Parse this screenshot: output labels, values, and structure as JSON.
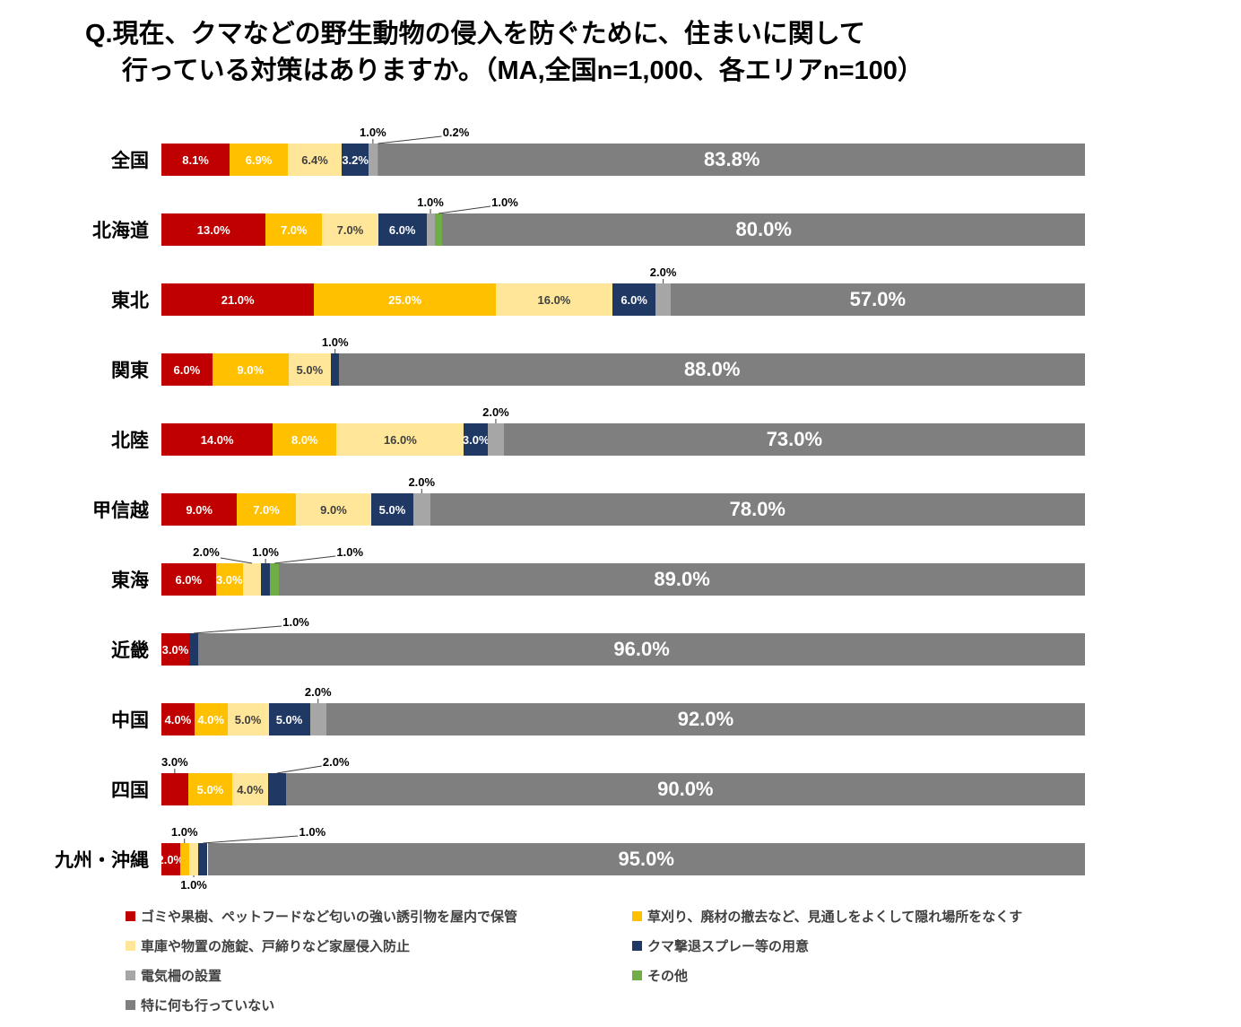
{
  "title": {
    "line1": "Q.現在、クマなどの野生動物の侵入を防ぐために、住まいに関して",
    "line2": "行っている対策はありますか。（MA,全国n=1,000、各エリアn=100）"
  },
  "chart_data": {
    "type": "bar",
    "subtype": "horizontal-stacked-percent",
    "note": "MA, 全国n=1,000、各エリアn=100",
    "categories": [
      "全国",
      "北海道",
      "東北",
      "関東",
      "北陸",
      "甲信越",
      "東海",
      "近畿",
      "中国",
      "四国",
      "九州・沖縄"
    ],
    "series": [
      {
        "name": "ゴミや果樹、ペットフードなど匂いの強い誘引物を屋内で保管",
        "color": "#c00000",
        "text": "#ffffff",
        "values": [
          8.1,
          13.0,
          21.0,
          6.0,
          14.0,
          9.0,
          6.0,
          3.0,
          4.0,
          3.0,
          2.0
        ]
      },
      {
        "name": "草刈り、廃材の撤去など、見通しをよくして隠れ場所をなくす",
        "color": "#ffc000",
        "text": "#ffffff",
        "values": [
          6.9,
          7.0,
          25.0,
          9.0,
          8.0,
          7.0,
          3.0,
          0,
          4.0,
          5.0,
          1.0
        ]
      },
      {
        "name": "車庫や物置の施錠、戸締りなど家屋侵入防止",
        "color": "#ffe699",
        "text": "#404040",
        "values": [
          6.4,
          7.0,
          16.0,
          5.0,
          16.0,
          9.0,
          2.0,
          0,
          5.0,
          4.0,
          1.0
        ]
      },
      {
        "name": "クマ撃退スプレー等の用意",
        "color": "#1f3864",
        "text": "#ffffff",
        "values": [
          3.2,
          6.0,
          6.0,
          1.0,
          3.0,
          5.0,
          1.0,
          1.0,
          5.0,
          2.0,
          1.0
        ]
      },
      {
        "name": "電気柵の設置",
        "color": "#a6a6a6",
        "text": "#ffffff",
        "values": [
          1.0,
          1.0,
          2.0,
          0,
          2.0,
          2.0,
          0,
          0,
          2.0,
          0,
          0
        ]
      },
      {
        "name": "その他",
        "color": "#70ad47",
        "text": "#ffffff",
        "values": [
          0.2,
          1.0,
          0,
          0,
          0,
          0,
          1.0,
          0,
          0,
          0,
          0
        ]
      },
      {
        "name": "特に何も行っていない",
        "color": "#7f7f7f",
        "text": "#ffffff",
        "values": [
          83.8,
          80.0,
          57.0,
          88.0,
          73.0,
          78.0,
          89.0,
          96.0,
          92.0,
          90.0,
          95.0
        ]
      }
    ],
    "outside_labels": [
      {
        "region": 0,
        "series": 4,
        "mode": "above",
        "dx": 0
      },
      {
        "region": 0,
        "series": 5,
        "mode": "callout",
        "dx": 87
      },
      {
        "region": 1,
        "series": 4,
        "mode": "above",
        "dx": 0
      },
      {
        "region": 1,
        "series": 5,
        "mode": "callout",
        "dx": 74
      },
      {
        "region": 2,
        "series": 4,
        "mode": "above",
        "dx": 0
      },
      {
        "region": 3,
        "series": 3,
        "mode": "above",
        "dx": 0
      },
      {
        "region": 4,
        "series": 4,
        "mode": "above",
        "dx": 0
      },
      {
        "region": 5,
        "series": 4,
        "mode": "above",
        "dx": 0
      },
      {
        "region": 6,
        "series": 2,
        "mode": "above",
        "dx": -51
      },
      {
        "region": 6,
        "series": 3,
        "mode": "above",
        "dx": 0
      },
      {
        "region": 6,
        "series": 5,
        "mode": "callout",
        "dx": 84
      },
      {
        "region": 7,
        "series": 3,
        "mode": "callout",
        "dx": 114
      },
      {
        "region": 8,
        "series": 4,
        "mode": "above",
        "dx": 0
      },
      {
        "region": 9,
        "series": 0,
        "mode": "above",
        "dx": 0
      },
      {
        "region": 9,
        "series": 3,
        "mode": "callout",
        "dx": 66
      },
      {
        "region": 10,
        "series": 1,
        "mode": "above",
        "dx": 0
      },
      {
        "region": 10,
        "series": 2,
        "mode": "below",
        "dx": 0
      },
      {
        "region": 10,
        "series": 3,
        "mode": "callout",
        "dx": 122
      }
    ],
    "legend_columns": [
      [
        0,
        2,
        4,
        6
      ],
      [
        1,
        3,
        5
      ]
    ],
    "label_format_suffix": "%",
    "line_color": "#404040"
  }
}
